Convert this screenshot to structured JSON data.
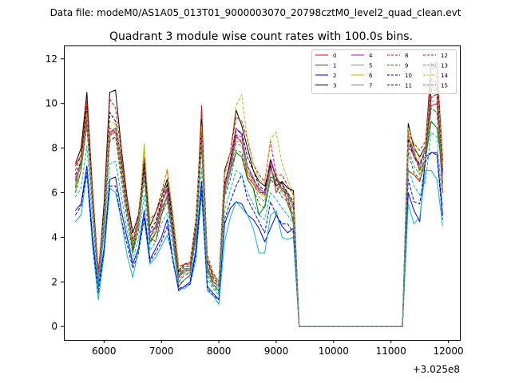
{
  "chart_data": {
    "type": "line",
    "suptitle": "Data file: modeM0/AS1A05_013T01_9000003070_20798cztM0_level2_quad_clean.evt",
    "title": "Quadrant 3 module wise count rates with 100.0s bins.",
    "xlabel": "",
    "ylabel": "",
    "x_offset_label": "+3.025e8",
    "xlim": [
      5300,
      12200
    ],
    "ylim": [
      -0.6,
      12.6
    ],
    "x_ticks": [
      6000,
      7000,
      8000,
      9000,
      10000,
      11000,
      12000
    ],
    "y_ticks": [
      0,
      2,
      4,
      6,
      8,
      10,
      12
    ],
    "grid": false,
    "legend": {
      "placement": "upper-right",
      "columns": 4
    },
    "x": [
      5500,
      5600,
      5700,
      5800,
      5900,
      6000,
      6100,
      6200,
      6300,
      6400,
      6500,
      6600,
      6700,
      6800,
      6900,
      7000,
      7100,
      7200,
      7300,
      7400,
      7500,
      7600,
      7700,
      7800,
      7900,
      8000,
      8100,
      8200,
      8300,
      8400,
      8500,
      8600,
      8700,
      8800,
      8900,
      9000,
      9100,
      9200,
      9300,
      9400,
      9500,
      9600,
      9700,
      9800,
      9900,
      10000,
      10100,
      10200,
      10300,
      10400,
      10500,
      10600,
      10700,
      10800,
      10900,
      11000,
      11100,
      11200,
      11300,
      11400,
      11500,
      11600,
      11700,
      11800,
      11900
    ],
    "series": [
      {
        "name": "0",
        "color": "#ff0000",
        "dash": "solid",
        "values": [
          7.2,
          7.7,
          10.0,
          6.0,
          2.3,
          5.0,
          8.7,
          8.9,
          7.5,
          5.5,
          3.5,
          4.6,
          7.2,
          4.0,
          3.8,
          5.0,
          5.9,
          4.0,
          1.8,
          2.1,
          2.3,
          4.2,
          9.9,
          2.6,
          2.0,
          1.8,
          6.0,
          7.0,
          8.5,
          8.3,
          6.7,
          6.4,
          6.0,
          6.0,
          7.3,
          6.0,
          6.5,
          5.5,
          4.8,
          0,
          0,
          0,
          0,
          0,
          0,
          0,
          0,
          0,
          0,
          0,
          0,
          0,
          0,
          0,
          0,
          0,
          0,
          0,
          7.0,
          6.8,
          6.5,
          7.5,
          9.9,
          10.0,
          6.0
        ]
      },
      {
        "name": "1",
        "color": "#008000",
        "dash": "solid",
        "values": [
          6.2,
          7.5,
          9.6,
          5.8,
          2.4,
          5.2,
          8.5,
          8.8,
          7.5,
          5.5,
          3.3,
          4.6,
          7.0,
          3.8,
          4.2,
          5.3,
          5.8,
          4.2,
          2.3,
          2.6,
          2.5,
          4.0,
          8.4,
          2.5,
          1.9,
          1.6,
          6.0,
          7.0,
          7.8,
          7.6,
          6.6,
          6.2,
          5.0,
          5.4,
          6.7,
          6.6,
          6.1,
          5.9,
          4.6,
          0,
          0,
          0,
          0,
          0,
          0,
          0,
          0,
          0,
          0,
          0,
          0,
          0,
          0,
          0,
          0,
          0,
          0,
          0,
          8.0,
          7.8,
          7.0,
          7.5,
          9.2,
          8.9,
          7.0
        ]
      },
      {
        "name": "2",
        "color": "#0000ff",
        "dash": "solid",
        "values": [
          5.2,
          5.5,
          7.2,
          4.0,
          1.7,
          3.5,
          6.6,
          6.7,
          5.2,
          4.0,
          2.8,
          3.5,
          5.2,
          3.0,
          3.5,
          4.0,
          4.8,
          3.0,
          1.6,
          1.8,
          2.0,
          3.4,
          6.5,
          1.8,
          1.5,
          1.2,
          4.6,
          5.3,
          5.6,
          5.5,
          5.0,
          4.8,
          4.4,
          3.8,
          4.4,
          5.0,
          4.5,
          4.2,
          4.4,
          0,
          0,
          0,
          0,
          0,
          0,
          0,
          0,
          0,
          0,
          0,
          0,
          0,
          0,
          0,
          0,
          0,
          0,
          0,
          6.0,
          5.2,
          4.7,
          7.6,
          7.8,
          7.8,
          5.0
        ]
      },
      {
        "name": "3",
        "color": "#000000",
        "dash": "solid",
        "values": [
          7.3,
          8.0,
          10.5,
          6.0,
          2.2,
          5.5,
          10.5,
          10.6,
          8.0,
          5.8,
          4.2,
          5.0,
          7.5,
          4.5,
          5.1,
          5.8,
          6.6,
          4.8,
          2.5,
          2.8,
          2.8,
          4.7,
          9.3,
          3.0,
          2.3,
          2.0,
          7.0,
          7.8,
          9.7,
          9.0,
          8.0,
          7.0,
          6.5,
          6.3,
          7.2,
          6.3,
          6.5,
          6.2,
          6.1,
          0,
          0,
          0,
          0,
          0,
          0,
          0,
          0,
          0,
          0,
          0,
          0,
          0,
          0,
          0,
          0,
          0,
          0,
          0,
          9.1,
          8.0,
          7.6,
          8.1,
          11.8,
          11.6,
          7.4
        ]
      },
      {
        "name": "4",
        "color": "#bf00bf",
        "dash": "solid",
        "values": [
          6.5,
          7.2,
          9.2,
          5.5,
          2.2,
          4.8,
          8.6,
          8.7,
          7.0,
          5.2,
          3.6,
          4.6,
          7.0,
          4.0,
          4.5,
          5.5,
          6.2,
          4.3,
          2.2,
          2.5,
          2.5,
          4.3,
          8.6,
          2.7,
          2.0,
          1.8,
          6.2,
          7.5,
          8.9,
          8.6,
          7.0,
          6.6,
          6.2,
          6.0,
          7.5,
          6.7,
          6.2,
          6.0,
          5.5,
          0,
          0,
          0,
          0,
          0,
          0,
          0,
          0,
          0,
          0,
          0,
          0,
          0,
          0,
          0,
          0,
          0,
          0,
          0,
          8.6,
          7.8,
          7.2,
          8.0,
          11.1,
          10.9,
          6.9
        ]
      },
      {
        "name": "5",
        "color": "#00bfbf",
        "dash": "solid",
        "values": [
          4.7,
          5.0,
          6.9,
          3.6,
          1.2,
          3.2,
          6.2,
          6.0,
          4.8,
          3.2,
          2.2,
          3.4,
          4.8,
          2.8,
          3.1,
          3.6,
          4.1,
          3.1,
          1.7,
          1.7,
          1.9,
          3.0,
          6.0,
          1.6,
          1.4,
          1.0,
          3.8,
          4.9,
          5.6,
          5.3,
          5.0,
          4.4,
          3.3,
          3.3,
          5.0,
          5.2,
          4.0,
          3.9,
          4.0,
          0,
          0,
          0,
          0,
          0,
          0,
          0,
          0,
          0,
          0,
          0,
          0,
          0,
          0,
          0,
          0,
          0,
          0,
          0,
          5.5,
          4.6,
          4.9,
          7.0,
          7.0,
          6.6,
          4.5
        ]
      },
      {
        "name": "6",
        "color": "#bfbf00",
        "dash": "solid",
        "values": [
          6.0,
          7.0,
          9.4,
          5.5,
          2.0,
          4.8,
          8.5,
          8.8,
          7.0,
          5.5,
          3.6,
          4.5,
          8.2,
          4.5,
          4.4,
          5.4,
          6.4,
          4.7,
          2.5,
          2.4,
          2.6,
          4.4,
          8.6,
          2.7,
          2.1,
          1.8,
          6.5,
          7.2,
          8.3,
          8.3,
          7.0,
          6.5,
          6.0,
          5.8,
          6.9,
          6.8,
          6.2,
          6.0,
          5.5,
          0,
          0,
          0,
          0,
          0,
          0,
          0,
          0,
          0,
          0,
          0,
          0,
          0,
          0,
          0,
          0,
          0,
          0,
          0,
          8.5,
          8.0,
          6.8,
          7.4,
          10.2,
          10.5,
          7.3
        ]
      },
      {
        "name": "7",
        "color": "#808080",
        "dash": "solid",
        "values": [
          6.7,
          7.2,
          9.5,
          5.6,
          2.1,
          4.6,
          8.6,
          8.9,
          7.4,
          5.4,
          3.7,
          4.8,
          7.2,
          4.2,
          4.4,
          5.4,
          5.7,
          4.0,
          2.2,
          2.6,
          2.6,
          4.4,
          8.7,
          2.6,
          2.0,
          1.8,
          6.0,
          7.1,
          8.6,
          8.2,
          7.2,
          6.7,
          6.1,
          5.9,
          7.1,
          6.5,
          6.4,
          5.9,
          5.3,
          0,
          0,
          0,
          0,
          0,
          0,
          0,
          0,
          0,
          0,
          0,
          0,
          0,
          0,
          0,
          0,
          0,
          0,
          0,
          8.6,
          7.6,
          7.2,
          8.0,
          10.7,
          10.7,
          6.4
        ]
      },
      {
        "name": "8",
        "color": "#ff0000",
        "dash": "dashed",
        "values": [
          7.0,
          7.7,
          10.2,
          6.2,
          2.5,
          5.2,
          10.2,
          9.8,
          7.8,
          5.7,
          3.9,
          4.9,
          7.6,
          4.8,
          5.1,
          6.0,
          7.0,
          5.0,
          2.7,
          2.8,
          2.9,
          4.8,
          9.1,
          3.2,
          2.4,
          2.0,
          6.8,
          7.8,
          9.4,
          9.2,
          8.4,
          7.3,
          6.8,
          6.5,
          8.3,
          6.8,
          6.8,
          6.3,
          5.9,
          0,
          0,
          0,
          0,
          0,
          0,
          0,
          0,
          0,
          0,
          0,
          0,
          0,
          0,
          0,
          0,
          0,
          0,
          0,
          8.7,
          8.2,
          7.9,
          8.3,
          11.5,
          11.9,
          7.5
        ]
      },
      {
        "name": "9",
        "color": "#008000",
        "dash": "dashed",
        "values": [
          6.0,
          7.0,
          9.0,
          5.3,
          1.9,
          4.3,
          8.3,
          8.5,
          6.6,
          4.8,
          3.3,
          4.3,
          6.6,
          3.7,
          4.2,
          5.0,
          5.6,
          3.9,
          2.0,
          2.3,
          2.4,
          4.0,
          8.1,
          2.3,
          1.8,
          1.5,
          5.8,
          6.6,
          7.9,
          7.8,
          6.6,
          6.2,
          5.5,
          5.3,
          6.6,
          6.3,
          5.8,
          5.6,
          5.0,
          0,
          0,
          0,
          0,
          0,
          0,
          0,
          0,
          0,
          0,
          0,
          0,
          0,
          0,
          0,
          0,
          0,
          0,
          0,
          7.8,
          6.9,
          6.6,
          7.3,
          9.8,
          9.6,
          6.4
        ]
      },
      {
        "name": "10",
        "color": "#0000ff",
        "dash": "dashed",
        "values": [
          5.0,
          5.4,
          6.9,
          3.8,
          1.5,
          3.4,
          6.3,
          6.3,
          4.8,
          3.7,
          2.6,
          3.3,
          4.9,
          2.9,
          3.3,
          3.8,
          4.5,
          2.9,
          1.7,
          1.8,
          1.9,
          3.2,
          6.1,
          1.7,
          1.4,
          1.2,
          4.8,
          5.6,
          6.3,
          6.8,
          5.7,
          5.2,
          4.7,
          4.2,
          5.6,
          5.0,
          4.6,
          4.6,
          4.2,
          0,
          0,
          0,
          0,
          0,
          0,
          0,
          0,
          0,
          0,
          0,
          0,
          0,
          0,
          0,
          0,
          0,
          0,
          0,
          6.6,
          5.6,
          5.5,
          7.4,
          7.8,
          7.7,
          4.8
        ]
      },
      {
        "name": "11",
        "color": "#000000",
        "dash": "dashed",
        "values": [
          6.8,
          7.4,
          9.8,
          5.8,
          2.2,
          5.0,
          9.6,
          9.2,
          7.4,
          5.4,
          3.8,
          4.7,
          7.3,
          4.3,
          4.7,
          5.6,
          6.4,
          4.6,
          2.4,
          2.7,
          2.7,
          4.6,
          8.8,
          2.9,
          2.2,
          1.9,
          6.4,
          7.4,
          8.8,
          8.7,
          7.6,
          7.0,
          6.3,
          6.1,
          7.5,
          6.6,
          6.4,
          6.0,
          5.6,
          0,
          0,
          0,
          0,
          0,
          0,
          0,
          0,
          0,
          0,
          0,
          0,
          0,
          0,
          0,
          0,
          0,
          0,
          0,
          8.4,
          7.6,
          7.3,
          7.8,
          10.6,
          10.6,
          7.0
        ]
      },
      {
        "name": "12",
        "color": "#bf00bf",
        "dash": "dashed",
        "values": [
          6.6,
          7.3,
          9.3,
          5.6,
          2.1,
          4.9,
          8.9,
          8.7,
          7.1,
          5.2,
          3.7,
          4.6,
          6.9,
          4.2,
          4.5,
          5.5,
          6.1,
          4.3,
          2.2,
          2.5,
          2.5,
          4.3,
          8.5,
          2.7,
          2.0,
          1.8,
          6.2,
          7.3,
          8.6,
          8.5,
          7.2,
          6.6,
          6.1,
          5.9,
          7.4,
          6.7,
          6.2,
          5.9,
          5.4,
          0,
          0,
          0,
          0,
          0,
          0,
          0,
          0,
          0,
          0,
          0,
          0,
          0,
          0,
          0,
          0,
          0,
          0,
          0,
          8.2,
          7.6,
          7.1,
          7.7,
          10.3,
          10.4,
          6.7
        ]
      },
      {
        "name": "13",
        "color": "#00bfbf",
        "dash": "dashed",
        "values": [
          5.8,
          6.2,
          8.1,
          4.7,
          1.7,
          4.1,
          7.3,
          7.4,
          5.9,
          4.3,
          3.0,
          3.9,
          5.9,
          3.4,
          3.8,
          4.6,
          5.1,
          3.6,
          1.9,
          2.1,
          2.2,
          3.7,
          7.1,
          2.1,
          1.7,
          1.4,
          5.2,
          6.1,
          7.0,
          6.8,
          6.0,
          5.5,
          5.0,
          4.8,
          6.0,
          5.7,
          5.3,
          5.0,
          4.6,
          0,
          0,
          0,
          0,
          0,
          0,
          0,
          0,
          0,
          0,
          0,
          0,
          0,
          0,
          0,
          0,
          0,
          0,
          0,
          7.1,
          6.3,
          5.9,
          6.5,
          8.7,
          8.5,
          5.4
        ]
      },
      {
        "name": "14",
        "color": "#bfbf00",
        "dash": "dashed",
        "values": [
          6.4,
          7.3,
          9.6,
          5.7,
          2.2,
          5.0,
          9.2,
          9.1,
          7.3,
          5.5,
          3.8,
          4.7,
          7.9,
          4.6,
          4.8,
          5.8,
          7.1,
          5.0,
          2.6,
          2.7,
          2.8,
          4.7,
          9.0,
          3.0,
          2.3,
          2.0,
          6.9,
          7.8,
          9.9,
          10.4,
          8.3,
          7.3,
          6.6,
          6.4,
          8.4,
          8.7,
          7.3,
          6.6,
          5.9,
          0,
          0,
          0,
          0,
          0,
          0,
          0,
          0,
          0,
          0,
          0,
          0,
          0,
          0,
          0,
          0,
          0,
          0,
          0,
          8.9,
          8.2,
          7.4,
          8.1,
          11.0,
          11.2,
          7.2
        ]
      },
      {
        "name": "15",
        "color": "#808080",
        "dash": "dashed",
        "values": [
          6.3,
          7.0,
          9.1,
          5.4,
          2.1,
          4.7,
          8.4,
          8.5,
          6.9,
          5.1,
          3.6,
          4.5,
          6.8,
          4.0,
          4.3,
          5.2,
          5.9,
          4.1,
          2.1,
          2.4,
          2.4,
          4.1,
          8.2,
          2.5,
          1.9,
          1.7,
          5.9,
          6.9,
          8.2,
          8.1,
          6.9,
          6.4,
          5.8,
          5.6,
          7.0,
          6.4,
          6.0,
          5.7,
          5.2,
          0,
          0,
          0,
          0,
          0,
          0,
          0,
          0,
          0,
          0,
          0,
          0,
          0,
          0,
          0,
          0,
          0,
          0,
          0,
          8.0,
          7.2,
          6.8,
          7.5,
          10.1,
          10.1,
          6.5
        ]
      }
    ]
  }
}
